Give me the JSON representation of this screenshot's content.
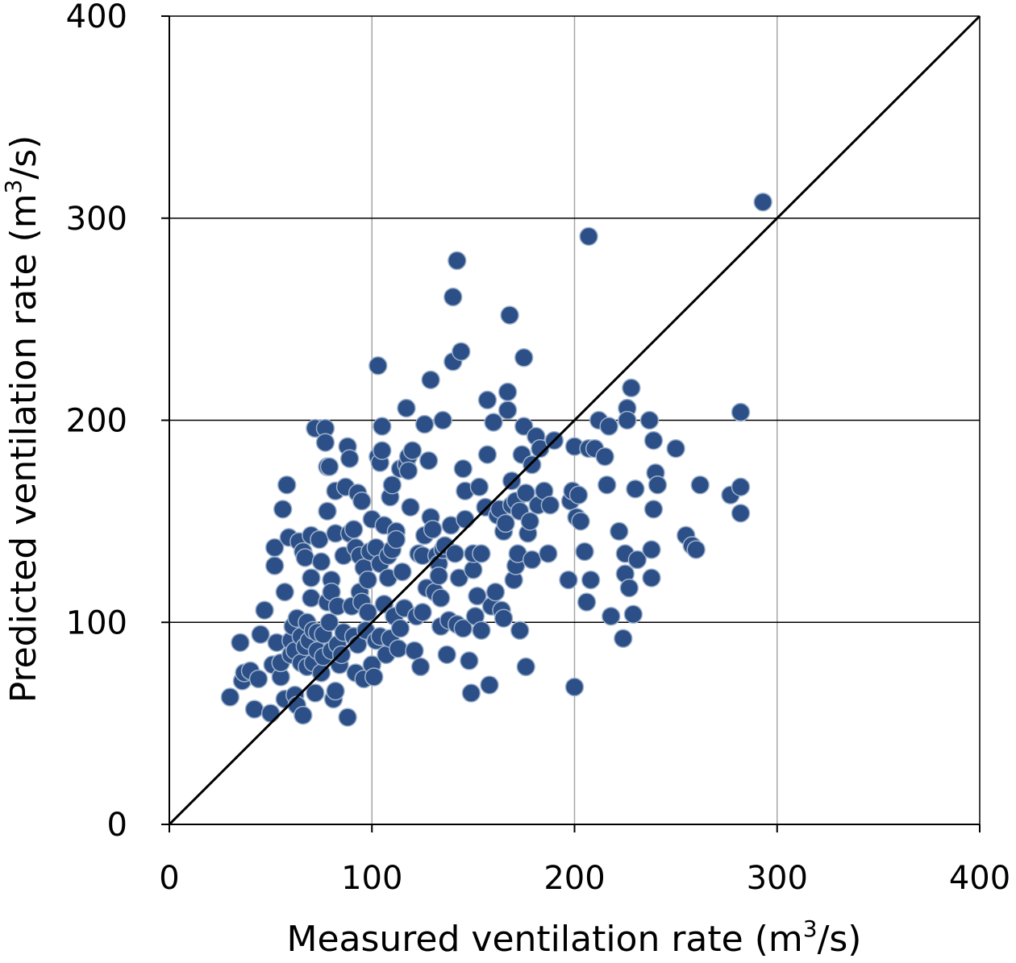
{
  "chart_data": {
    "type": "scatter",
    "title": "",
    "xlabel": {
      "prefix": "Measured ventilation rate (m",
      "sup": "3",
      "suffix": "/s)"
    },
    "ylabel": {
      "prefix": "Predicted ventilation rate (m",
      "sup": "3",
      "suffix": "/s)"
    },
    "xlim": [
      0,
      400
    ],
    "ylim": [
      0,
      400
    ],
    "xticks": [
      0,
      100,
      200,
      300,
      400
    ],
    "yticks": [
      0,
      100,
      200,
      300,
      400
    ],
    "xtick_labels": [
      "0",
      "100",
      "200",
      "300",
      "400"
    ],
    "ytick_labels": [
      "0",
      "100",
      "200",
      "300",
      "400"
    ],
    "grid": "major, vertical gray / horizontal black",
    "reference_line": {
      "type": "y=x",
      "from": [
        0,
        0
      ],
      "to": [
        400,
        400
      ]
    },
    "colors": {
      "point": "#2b4f86",
      "point_edge": "#9fb2cc",
      "line": "#000000"
    },
    "points": [
      [
        30,
        63
      ],
      [
        35,
        90
      ],
      [
        36,
        71
      ],
      [
        37,
        75
      ],
      [
        40,
        76
      ],
      [
        42,
        57
      ],
      [
        44,
        72
      ],
      [
        45,
        94
      ],
      [
        47,
        106
      ],
      [
        50,
        55
      ],
      [
        51,
        79
      ],
      [
        52,
        128
      ],
      [
        52,
        137
      ],
      [
        53,
        90
      ],
      [
        55,
        73
      ],
      [
        55,
        80
      ],
      [
        56,
        156
      ],
      [
        57,
        62
      ],
      [
        57,
        115
      ],
      [
        58,
        168
      ],
      [
        59,
        142
      ],
      [
        60,
        84
      ],
      [
        60,
        91
      ],
      [
        61,
        98
      ],
      [
        62,
        64
      ],
      [
        62,
        86
      ],
      [
        63,
        59
      ],
      [
        63,
        102
      ],
      [
        64,
        140
      ],
      [
        65,
        80
      ],
      [
        65,
        93
      ],
      [
        66,
        54
      ],
      [
        66,
        135
      ],
      [
        67,
        132
      ],
      [
        67,
        88
      ],
      [
        68,
        78
      ],
      [
        68,
        100
      ],
      [
        69,
        91
      ],
      [
        70,
        143
      ],
      [
        70,
        122
      ],
      [
        70,
        112
      ],
      [
        71,
        96
      ],
      [
        71,
        80
      ],
      [
        72,
        65
      ],
      [
        72,
        196
      ],
      [
        73,
        95
      ],
      [
        73,
        86
      ],
      [
        74,
        141
      ],
      [
        75,
        75
      ],
      [
        75,
        130
      ],
      [
        76,
        94
      ],
      [
        76,
        83
      ],
      [
        77,
        196
      ],
      [
        77,
        189
      ],
      [
        78,
        110
      ],
      [
        78,
        155
      ],
      [
        78,
        177
      ],
      [
        79,
        100
      ],
      [
        79,
        177
      ],
      [
        80,
        121
      ],
      [
        80,
        86
      ],
      [
        80,
        115
      ],
      [
        81,
        62
      ],
      [
        82,
        66
      ],
      [
        82,
        144
      ],
      [
        82,
        165
      ],
      [
        83,
        108
      ],
      [
        83,
        89
      ],
      [
        84,
        79
      ],
      [
        85,
        84
      ],
      [
        86,
        95
      ],
      [
        86,
        133
      ],
      [
        87,
        167
      ],
      [
        88,
        53
      ],
      [
        88,
        187
      ],
      [
        89,
        181
      ],
      [
        89,
        144
      ],
      [
        90,
        108
      ],
      [
        91,
        146
      ],
      [
        91,
        93
      ],
      [
        92,
        137
      ],
      [
        92,
        75
      ],
      [
        93,
        164
      ],
      [
        93,
        89
      ],
      [
        94,
        115
      ],
      [
        94,
        133
      ],
      [
        95,
        160
      ],
      [
        95,
        110
      ],
      [
        96,
        72
      ],
      [
        96,
        127
      ],
      [
        97,
        96
      ],
      [
        98,
        121
      ],
      [
        98,
        105
      ],
      [
        99,
        135
      ],
      [
        100,
        79
      ],
      [
        100,
        151
      ],
      [
        101,
        73
      ],
      [
        102,
        91
      ],
      [
        102,
        137
      ],
      [
        103,
        182
      ],
      [
        103,
        227
      ],
      [
        104,
        93
      ],
      [
        104,
        179
      ],
      [
        104,
        129
      ],
      [
        105,
        197
      ],
      [
        105,
        185
      ],
      [
        106,
        109
      ],
      [
        106,
        148
      ],
      [
        107,
        84
      ],
      [
        108,
        122
      ],
      [
        108,
        133
      ],
      [
        109,
        162
      ],
      [
        109,
        92
      ],
      [
        110,
        168
      ],
      [
        110,
        136
      ],
      [
        111,
        103
      ],
      [
        112,
        145
      ],
      [
        112,
        141
      ],
      [
        113,
        87
      ],
      [
        114,
        176
      ],
      [
        114,
        97
      ],
      [
        115,
        125
      ],
      [
        116,
        107
      ],
      [
        117,
        178
      ],
      [
        117,
        206
      ],
      [
        118,
        182
      ],
      [
        118,
        175
      ],
      [
        119,
        157
      ],
      [
        120,
        185
      ],
      [
        121,
        86
      ],
      [
        122,
        103
      ],
      [
        123,
        134
      ],
      [
        124,
        78
      ],
      [
        125,
        105
      ],
      [
        125,
        133
      ],
      [
        126,
        198
      ],
      [
        126,
        143
      ],
      [
        127,
        117
      ],
      [
        128,
        180
      ],
      [
        129,
        152
      ],
      [
        129,
        220
      ],
      [
        130,
        146
      ],
      [
        131,
        115
      ],
      [
        132,
        133
      ],
      [
        133,
        129
      ],
      [
        133,
        123
      ],
      [
        134,
        112
      ],
      [
        134,
        98
      ],
      [
        135,
        200
      ],
      [
        135,
        136
      ],
      [
        136,
        138
      ],
      [
        137,
        84
      ],
      [
        138,
        101
      ],
      [
        139,
        148
      ],
      [
        140,
        229
      ],
      [
        140,
        261
      ],
      [
        141,
        134
      ],
      [
        142,
        279
      ],
      [
        142,
        99
      ],
      [
        143,
        122
      ],
      [
        144,
        234
      ],
      [
        145,
        97
      ],
      [
        145,
        176
      ],
      [
        146,
        151
      ],
      [
        146,
        165
      ],
      [
        148,
        81
      ],
      [
        149,
        65
      ],
      [
        150,
        126
      ],
      [
        150,
        134
      ],
      [
        151,
        103
      ],
      [
        152,
        113
      ],
      [
        153,
        167
      ],
      [
        154,
        96
      ],
      [
        154,
        134
      ],
      [
        156,
        157
      ],
      [
        157,
        210
      ],
      [
        157,
        183
      ],
      [
        158,
        69
      ],
      [
        159,
        108
      ],
      [
        160,
        199
      ],
      [
        161,
        115
      ],
      [
        162,
        153
      ],
      [
        163,
        156
      ],
      [
        164,
        106
      ],
      [
        165,
        102
      ],
      [
        165,
        145
      ],
      [
        166,
        149
      ],
      [
        167,
        214
      ],
      [
        167,
        205
      ],
      [
        168,
        252
      ],
      [
        169,
        170
      ],
      [
        169,
        158
      ],
      [
        170,
        121
      ],
      [
        171,
        160
      ],
      [
        171,
        128
      ],
      [
        172,
        134
      ],
      [
        173,
        155
      ],
      [
        173,
        96
      ],
      [
        174,
        183
      ],
      [
        175,
        231
      ],
      [
        175,
        197
      ],
      [
        176,
        78
      ],
      [
        176,
        164
      ],
      [
        177,
        144
      ],
      [
        178,
        150
      ],
      [
        179,
        178
      ],
      [
        179,
        131
      ],
      [
        181,
        192
      ],
      [
        182,
        158
      ],
      [
        183,
        186
      ],
      [
        185,
        165
      ],
      [
        187,
        134
      ],
      [
        188,
        158
      ],
      [
        190,
        190
      ],
      [
        197,
        121
      ],
      [
        198,
        160
      ],
      [
        199,
        165
      ],
      [
        200,
        187
      ],
      [
        200,
        68
      ],
      [
        201,
        152
      ],
      [
        202,
        163
      ],
      [
        203,
        150
      ],
      [
        205,
        135
      ],
      [
        206,
        110
      ],
      [
        207,
        186
      ],
      [
        207,
        291
      ],
      [
        208,
        121
      ],
      [
        210,
        186
      ],
      [
        212,
        200
      ],
      [
        215,
        182
      ],
      [
        216,
        168
      ],
      [
        217,
        197
      ],
      [
        218,
        103
      ],
      [
        222,
        145
      ],
      [
        224,
        92
      ],
      [
        225,
        134
      ],
      [
        225,
        124
      ],
      [
        226,
        206
      ],
      [
        226,
        200
      ],
      [
        227,
        117
      ],
      [
        228,
        216
      ],
      [
        229,
        104
      ],
      [
        230,
        166
      ],
      [
        231,
        131
      ],
      [
        237,
        200
      ],
      [
        238,
        122
      ],
      [
        238,
        136
      ],
      [
        239,
        190
      ],
      [
        239,
        156
      ],
      [
        240,
        174
      ],
      [
        241,
        168
      ],
      [
        250,
        186
      ],
      [
        255,
        143
      ],
      [
        258,
        138
      ],
      [
        260,
        136
      ],
      [
        262,
        168
      ],
      [
        277,
        163
      ],
      [
        282,
        167
      ],
      [
        282,
        154
      ],
      [
        282,
        204
      ],
      [
        293,
        308
      ]
    ]
  }
}
